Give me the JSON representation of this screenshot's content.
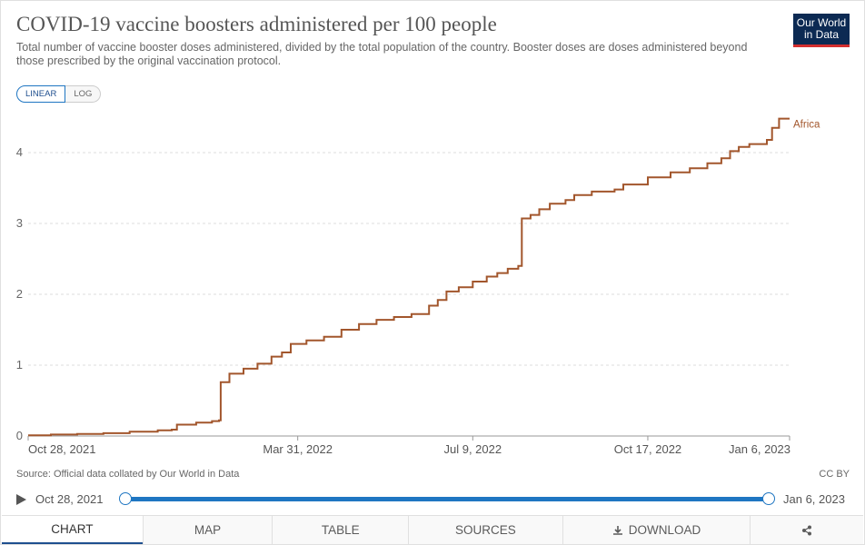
{
  "header": {
    "title": "COVID-19 vaccine boosters administered per 100 people",
    "subtitle": "Total number of vaccine booster doses administered, divided by the total population of the country. Booster doses are doses administered beyond those prescribed by the original vaccination protocol.",
    "logo_line1": "Our World",
    "logo_line2": "in Data"
  },
  "controls": {
    "linear_label": "LINEAR",
    "log_label": "LOG",
    "active": "LINEAR"
  },
  "chart_data": {
    "type": "line",
    "title": "COVID-19 vaccine boosters administered per 100 people",
    "xlabel": "",
    "ylabel": "",
    "ylim": [
      0,
      4.5
    ],
    "yticks": [
      0,
      1,
      2,
      3,
      4
    ],
    "grid": "horizontal dashed",
    "xticks": [
      "Oct 28, 2021",
      "Mar 31, 2022",
      "Jul 9, 2022",
      "Oct 17, 2022",
      "Jan 6, 2023"
    ],
    "series": [
      {
        "name": "Africa",
        "color": "#a2562c",
        "points": [
          [
            "2021-10-28",
            0.01
          ],
          [
            "2021-11-10",
            0.02
          ],
          [
            "2021-11-25",
            0.03
          ],
          [
            "2021-12-10",
            0.04
          ],
          [
            "2021-12-25",
            0.06
          ],
          [
            "2022-01-10",
            0.08
          ],
          [
            "2022-01-18",
            0.09
          ],
          [
            "2022-01-21",
            0.16
          ],
          [
            "2022-02-01",
            0.19
          ],
          [
            "2022-02-10",
            0.21
          ],
          [
            "2022-02-14",
            0.22
          ],
          [
            "2022-02-15",
            0.76
          ],
          [
            "2022-02-20",
            0.88
          ],
          [
            "2022-02-28",
            0.95
          ],
          [
            "2022-03-08",
            1.02
          ],
          [
            "2022-03-16",
            1.12
          ],
          [
            "2022-03-22",
            1.18
          ],
          [
            "2022-03-27",
            1.3
          ],
          [
            "2022-04-05",
            1.35
          ],
          [
            "2022-04-15",
            1.4
          ],
          [
            "2022-04-25",
            1.5
          ],
          [
            "2022-05-05",
            1.58
          ],
          [
            "2022-05-15",
            1.64
          ],
          [
            "2022-05-25",
            1.68
          ],
          [
            "2022-06-04",
            1.72
          ],
          [
            "2022-06-14",
            1.84
          ],
          [
            "2022-06-19",
            1.92
          ],
          [
            "2022-06-24",
            2.04
          ],
          [
            "2022-07-01",
            2.1
          ],
          [
            "2022-07-09",
            2.18
          ],
          [
            "2022-07-17",
            2.25
          ],
          [
            "2022-07-23",
            2.3
          ],
          [
            "2022-07-29",
            2.36
          ],
          [
            "2022-08-04",
            2.4
          ],
          [
            "2022-08-06",
            3.07
          ],
          [
            "2022-08-11",
            3.12
          ],
          [
            "2022-08-16",
            3.2
          ],
          [
            "2022-08-22",
            3.28
          ],
          [
            "2022-08-31",
            3.33
          ],
          [
            "2022-09-05",
            3.4
          ],
          [
            "2022-09-15",
            3.45
          ],
          [
            "2022-09-28",
            3.48
          ],
          [
            "2022-10-03",
            3.55
          ],
          [
            "2022-10-17",
            3.65
          ],
          [
            "2022-10-30",
            3.72
          ],
          [
            "2022-11-10",
            3.78
          ],
          [
            "2022-11-20",
            3.85
          ],
          [
            "2022-11-28",
            3.92
          ],
          [
            "2022-12-03",
            4.02
          ],
          [
            "2022-12-08",
            4.08
          ],
          [
            "2022-12-14",
            4.12
          ],
          [
            "2022-12-24",
            4.18
          ],
          [
            "2022-12-27",
            4.35
          ],
          [
            "2022-12-31",
            4.48
          ],
          [
            "2023-01-06",
            4.48
          ]
        ]
      }
    ]
  },
  "footer": {
    "source": "Source: Official data collated by Our World in Data",
    "license": "CC BY",
    "timeline_start": "Oct 28, 2021",
    "timeline_end": "Jan 6, 2023"
  },
  "tabs": {
    "chart": "CHART",
    "map": "MAP",
    "table": "TABLE",
    "sources": "SOURCES",
    "download": "DOWNLOAD"
  }
}
